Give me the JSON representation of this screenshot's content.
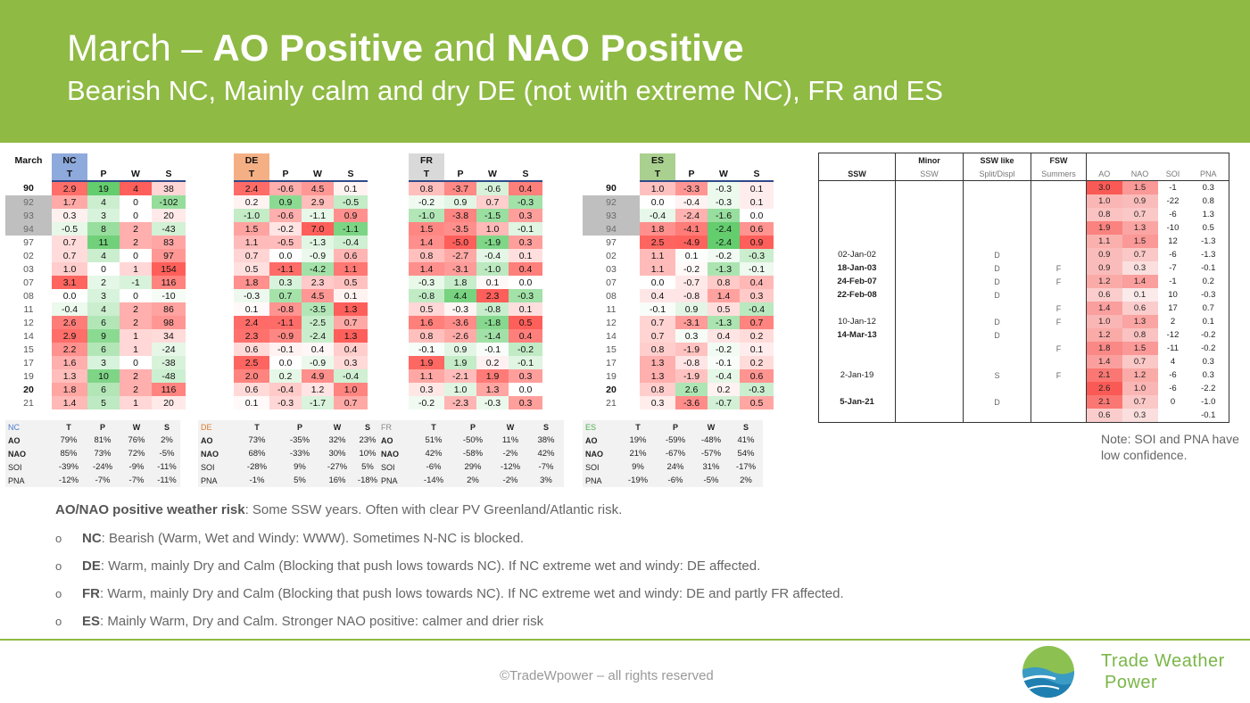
{
  "title": {
    "p1": "March – ",
    "ao": "AO Positive",
    "and": " and ",
    "nao": "NAO Positive"
  },
  "subtitle": "Bearish NC, Mainly calm and dry DE (not with extreme NC), FR and ES",
  "month_label": "March",
  "col_headers": [
    "T",
    "P",
    "W",
    "S"
  ],
  "regions": [
    {
      "name": "NC",
      "rows": [
        [
          "2.9",
          "19",
          "4",
          "38"
        ],
        [
          "1.7",
          "4",
          "0",
          "-102"
        ],
        [
          "0.3",
          "3",
          "0",
          "20"
        ],
        [
          "-0.5",
          "8",
          "2",
          "-43"
        ],
        [
          "0.7",
          "11",
          "2",
          "83"
        ],
        [
          "0.7",
          "4",
          "0",
          "97"
        ],
        [
          "1.0",
          "0",
          "1",
          "154"
        ],
        [
          "3.1",
          "2",
          "-1",
          "116"
        ],
        [
          "0.0",
          "3",
          "0",
          "-10"
        ],
        [
          "-0.4",
          "4",
          "2",
          "86"
        ],
        [
          "2.6",
          "6",
          "2",
          "98"
        ],
        [
          "2.9",
          "9",
          "1",
          "34"
        ],
        [
          "2.2",
          "6",
          "1",
          "-24"
        ],
        [
          "1.6",
          "3",
          "0",
          "-38"
        ],
        [
          "1.3",
          "10",
          "2",
          "-48"
        ],
        [
          "1.8",
          "6",
          "2",
          "116"
        ],
        [
          "1.4",
          "5",
          "1",
          "20"
        ]
      ]
    },
    {
      "name": "DE",
      "rows": [
        [
          "2.4",
          "-0.6",
          "4.5",
          "0.1"
        ],
        [
          "0.2",
          "0.9",
          "2.9",
          "-0.5"
        ],
        [
          "-1.0",
          "-0.6",
          "-1.1",
          "0.9"
        ],
        [
          "1.5",
          "-0.2",
          "7.0",
          "-1.1"
        ],
        [
          "1.1",
          "-0.5",
          "-1.3",
          "-0.4"
        ],
        [
          "0.7",
          "0.0",
          "-0.9",
          "0.6"
        ],
        [
          "0.5",
          "-1.1",
          "-4.2",
          "1.1"
        ],
        [
          "1.8",
          "0.3",
          "2.3",
          "0.5"
        ],
        [
          "-0.3",
          "0.7",
          "4.5",
          "0.1"
        ],
        [
          "0.1",
          "-0.8",
          "-3.5",
          "1.3"
        ],
        [
          "2.4",
          "-1.1",
          "-2.5",
          "0.7"
        ],
        [
          "2.3",
          "-0.9",
          "-2.4",
          "1.3"
        ],
        [
          "0.6",
          "-0.1",
          "0.4",
          "0.4"
        ],
        [
          "2.5",
          "0.0",
          "-0.9",
          "0.3"
        ],
        [
          "2.0",
          "0.2",
          "4.9",
          "-0.4"
        ],
        [
          "0.6",
          "-0.4",
          "1.2",
          "1.0"
        ],
        [
          "0.1",
          "-0.3",
          "-1.7",
          "0.7"
        ]
      ]
    },
    {
      "name": "FR",
      "rows": [
        [
          "0.8",
          "-3.7",
          "-0.6",
          "0.4"
        ],
        [
          "-0.2",
          "0.9",
          "0.7",
          "-0.3"
        ],
        [
          "-1.0",
          "-3.8",
          "-1.5",
          "0.3"
        ],
        [
          "1.5",
          "-3.5",
          "1.0",
          "-0.1"
        ],
        [
          "1.4",
          "-5.0",
          "-1.9",
          "0.3"
        ],
        [
          "0.8",
          "-2.7",
          "-0.4",
          "0.1"
        ],
        [
          "1.4",
          "-3.1",
          "-1.0",
          "0.4"
        ],
        [
          "-0.3",
          "1.8",
          "0.1",
          "0.0"
        ],
        [
          "-0.8",
          "4.4",
          "2.3",
          "-0.3"
        ],
        [
          "0.5",
          "-0.3",
          "-0.8",
          "0.1"
        ],
        [
          "1.6",
          "-3.6",
          "-1.8",
          "0.5"
        ],
        [
          "0.8",
          "-2.6",
          "-1.4",
          "0.4"
        ],
        [
          "-0.1",
          "0.9",
          "-0.1",
          "-0.2"
        ],
        [
          "1.9",
          "1.9",
          "0.2",
          "-0.1"
        ],
        [
          "1.1",
          "-2.1",
          "1.9",
          "0.3"
        ],
        [
          "0.3",
          "1.0",
          "1.3",
          "0.0"
        ],
        [
          "-0.2",
          "-2.3",
          "-0.3",
          "0.3"
        ]
      ]
    },
    {
      "name": "ES",
      "rows": [
        [
          "1.0",
          "-3.3",
          "-0.3",
          "0.1"
        ],
        [
          "0.0",
          "-0.4",
          "-0.3",
          "0.1"
        ],
        [
          "-0.4",
          "-2.4",
          "-1.6",
          "0.0"
        ],
        [
          "1.8",
          "-4.1",
          "-2.4",
          "0.6"
        ],
        [
          "2.5",
          "-4.9",
          "-2.4",
          "0.9"
        ],
        [
          "1.1",
          "0.1",
          "-0.2",
          "-0.3"
        ],
        [
          "1.1",
          "-0.2",
          "-1.3",
          "-0.1"
        ],
        [
          "0.0",
          "-0.7",
          "0.8",
          "0.4"
        ],
        [
          "0.4",
          "-0.8",
          "1.4",
          "0.3"
        ],
        [
          "-0.1",
          "0.9",
          "0.5",
          "-0.4"
        ],
        [
          "0.7",
          "-3.1",
          "-1.3",
          "0.7"
        ],
        [
          "0.7",
          "0.3",
          "0.4",
          "0.2"
        ],
        [
          "0.8",
          "-1.9",
          "-0.2",
          "0.1"
        ],
        [
          "1.3",
          "-0.8",
          "-0.1",
          "0.2"
        ],
        [
          "1.3",
          "-1.9",
          "-0.4",
          "0.6"
        ],
        [
          "0.8",
          "2.6",
          "0.2",
          "-0.3"
        ],
        [
          "0.3",
          "-3.6",
          "-0.7",
          "0.5"
        ]
      ]
    }
  ],
  "years": [
    "90",
    "92",
    "93",
    "94",
    "97",
    "02",
    "03",
    "07",
    "08",
    "11",
    "12",
    "14",
    "15",
    "17",
    "19",
    "20",
    "21"
  ],
  "stats": [
    {
      "region": "NC",
      "rows": [
        {
          "label": "AO",
          "values": [
            "79%",
            "81%",
            "76%",
            "2%"
          ]
        },
        {
          "label": "NAO",
          "values": [
            "85%",
            "73%",
            "72%",
            "-5%"
          ]
        },
        {
          "label": "SOI",
          "values": [
            "-39%",
            "-24%",
            "-9%",
            "-11%"
          ]
        },
        {
          "label": "PNA",
          "values": [
            "-12%",
            "-7%",
            "-7%",
            "-11%"
          ]
        }
      ]
    },
    {
      "region": "DE",
      "rows": [
        {
          "label": "AO",
          "values": [
            "73%",
            "-35%",
            "32%",
            "23%"
          ]
        },
        {
          "label": "NAO",
          "values": [
            "68%",
            "-33%",
            "30%",
            "10%"
          ]
        },
        {
          "label": "SOI",
          "values": [
            "-28%",
            "9%",
            "-27%",
            "5%"
          ]
        },
        {
          "label": "PNA",
          "values": [
            "-1%",
            "5%",
            "16%",
            "-18%"
          ]
        }
      ]
    },
    {
      "region": "FR",
      "rows": [
        {
          "label": "AO",
          "values": [
            "51%",
            "-50%",
            "11%",
            "38%"
          ]
        },
        {
          "label": "NAO",
          "values": [
            "42%",
            "-58%",
            "-2%",
            "42%"
          ]
        },
        {
          "label": "SOI",
          "values": [
            "-6%",
            "29%",
            "-12%",
            "-7%"
          ]
        },
        {
          "label": "PNA",
          "values": [
            "-14%",
            "2%",
            "-2%",
            "3%"
          ]
        }
      ]
    },
    {
      "region": "ES",
      "rows": [
        {
          "label": "AO",
          "values": [
            "19%",
            "-59%",
            "-48%",
            "41%"
          ]
        },
        {
          "label": "NAO",
          "values": [
            "21%",
            "-67%",
            "-57%",
            "54%"
          ]
        },
        {
          "label": "SOI",
          "values": [
            "9%",
            "24%",
            "31%",
            "-17%"
          ]
        },
        {
          "label": "PNA",
          "values": [
            "-19%",
            "-6%",
            "-5%",
            "2%"
          ]
        }
      ]
    }
  ],
  "ssw_table": {
    "header_top": [
      "",
      "Minor",
      "SSW like",
      "FSW",
      "",
      "",
      "",
      ""
    ],
    "header_bottom": [
      "SSW",
      "SSW",
      "Split/Displ",
      "Summers",
      "AO",
      "NAO",
      "SOI",
      "PNA"
    ],
    "rows": [
      [
        "",
        "",
        "",
        "",
        "3.0",
        "1.5",
        "-1",
        "0.3"
      ],
      [
        "",
        "",
        "",
        "",
        "1.0",
        "0.9",
        "-22",
        "0.8"
      ],
      [
        "",
        "",
        "",
        "",
        "0.8",
        "0.7",
        "-6",
        "1.3"
      ],
      [
        "",
        "",
        "",
        "",
        "1.9",
        "1.3",
        "-10",
        "0.5"
      ],
      [
        "",
        "",
        "",
        "",
        "1.1",
        "1.5",
        "12",
        "-1.3"
      ],
      [
        "02-Jan-02",
        "",
        "D",
        "",
        "0.9",
        "0.7",
        "-6",
        "-1.3"
      ],
      [
        "18-Jan-03",
        "",
        "D",
        "F",
        "0.9",
        "0.3",
        "-7",
        "-0.1"
      ],
      [
        "24-Feb-07",
        "",
        "D",
        "F",
        "1.2",
        "1.4",
        "-1",
        "0.2"
      ],
      [
        "22-Feb-08",
        "",
        "D",
        "",
        "0.6",
        "0.1",
        "10",
        "-0.3"
      ],
      [
        "",
        "",
        "",
        "F",
        "1.4",
        "0.6",
        "17",
        "0.7"
      ],
      [
        "10-Jan-12",
        "",
        "D",
        "F",
        "1.0",
        "1.3",
        "2",
        "0.1"
      ],
      [
        "14-Mar-13",
        "",
        "D",
        "",
        "1.2",
        "0.8",
        "-12",
        "-0.2"
      ],
      [
        "",
        "",
        "",
        "F",
        "1.8",
        "1.5",
        "-11",
        "-0.2"
      ],
      [
        "",
        "",
        "",
        "",
        "1.4",
        "0.7",
        "4",
        "0.3"
      ],
      [
        "2-Jan-19",
        "",
        "S",
        "F",
        "2.1",
        "1.2",
        "-6",
        "0.3"
      ],
      [
        "",
        "",
        "",
        "",
        "2.6",
        "1.0",
        "-6",
        "-2.2"
      ],
      [
        "5-Jan-21",
        "",
        "D",
        "",
        "2.1",
        "0.7",
        "0",
        "-1.0"
      ],
      [
        "",
        "",
        "",
        "",
        "0.6",
        "0.3",
        "",
        "-0.1"
      ]
    ]
  },
  "note": "Note: SOI and PNA have low confidence.",
  "risk": {
    "bold": "AO/NAO positive weather risk",
    "text": ": Some SSW years. Often with clear PV Greenland/Atlantic risk."
  },
  "bullets": [
    {
      "mark": "o",
      "bold": "NC",
      "text": ": Bearish (Warm, Wet and Windy: WWW). Sometimes N-NC is blocked."
    },
    {
      "mark": "o",
      "bold": "DE",
      "text": ": Warm, mainly Dry and Calm (Blocking that push lows towards NC). If NC extreme wet and windy: DE affected."
    },
    {
      "mark": "o",
      "bold": "FR",
      "text": ": Warm, mainly Dry and Calm (Blocking that push lows towards NC). If NC extreme wet and windy: DE and partly FR affected."
    },
    {
      "mark": "o",
      "bold": "ES",
      "text": ": Mainly Warm, Dry and Calm. Stronger NAO positive: calmer and drier risk"
    }
  ],
  "footer": {
    "copyright": "©TradeWpower – all rights reserved",
    "brand_line1": "Trade Weather",
    "brand_line2": "Power"
  },
  "colors": {
    "header_bg": "#8fba44",
    "nc_accent": "#8ea9db",
    "de_accent": "#f4b084",
    "fr_accent": "#d9d9d9",
    "es_accent": "#a9d08e"
  },
  "icons": {
    "logo": "trade-weather-power-logo"
  }
}
